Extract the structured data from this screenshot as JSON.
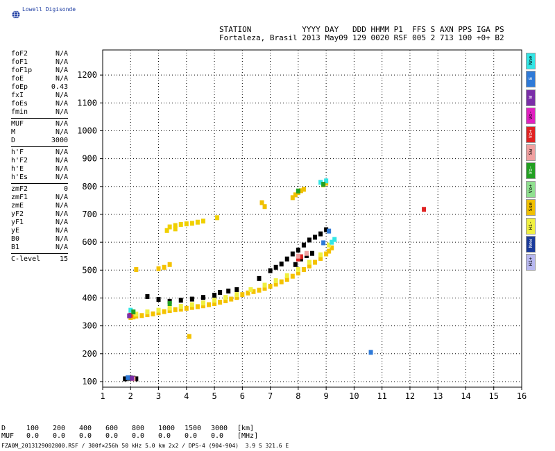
{
  "brand": {
    "name": "Lowell Digisonde",
    "icon": "globe-icon"
  },
  "header": {
    "line1": "STATION           YYYY DAY   DDD HHMM P1  FFS S AXN PPS IGA PS",
    "line2": "Fortaleza, Brasil 2013 May09 129 0020 RSF 005 2 713 100 +0+ B2"
  },
  "params": {
    "group1": [
      {
        "name": "foF2",
        "value": "N/A"
      },
      {
        "name": "foF1",
        "value": "N/A"
      },
      {
        "name": "foF1p",
        "value": "N/A"
      },
      {
        "name": "foE",
        "value": "N/A"
      },
      {
        "name": "foEp",
        "value": "0.43"
      },
      {
        "name": "fxI",
        "value": "N/A"
      },
      {
        "name": "foEs",
        "value": "N/A"
      },
      {
        "name": "fmin",
        "value": "N/A"
      }
    ],
    "group2": [
      {
        "name": "MUF",
        "value": "N/A"
      },
      {
        "name": "M",
        "value": "N/A"
      },
      {
        "name": "D",
        "value": "3000"
      }
    ],
    "group3": [
      {
        "name": "h'F",
        "value": "N/A"
      },
      {
        "name": "h'F2",
        "value": "N/A"
      },
      {
        "name": "h'E",
        "value": "N/A"
      },
      {
        "name": "h'Es",
        "value": "N/A"
      }
    ],
    "group4": [
      {
        "name": "zmF2",
        "value": "0"
      },
      {
        "name": "zmF1",
        "value": "N/A"
      },
      {
        "name": "zmE",
        "value": "N/A"
      },
      {
        "name": "yF2",
        "value": "N/A"
      },
      {
        "name": "yF1",
        "value": "N/A"
      },
      {
        "name": "yE",
        "value": "N/A"
      },
      {
        "name": "B0",
        "value": "N/A"
      },
      {
        "name": "B1",
        "value": "N/A"
      }
    ],
    "group5": [
      {
        "name": "C-level",
        "value": "15"
      }
    ]
  },
  "legend": [
    {
      "label": "Nne",
      "color": "#33e6e6"
    },
    {
      "label": "E",
      "color": "#2f7ad8"
    },
    {
      "label": "W",
      "color": "#7a2ea8"
    },
    {
      "label": "Vo-",
      "color": "#e020c0"
    },
    {
      "label": "Vo+",
      "color": "#e02222"
    },
    {
      "label": "Sw",
      "color": "#f0a0a0"
    },
    {
      "label": "Vo-",
      "color": "#22a022"
    },
    {
      "label": "Vo+",
      "color": "#90e090"
    },
    {
      "label": "Sse",
      "color": "#f0c000"
    },
    {
      "label": "Hi-",
      "color": "#f0f040"
    },
    {
      "label": "New",
      "color": "#1a3a9a"
    },
    {
      "label": "Hi+",
      "color": "#b8b8f0"
    }
  ],
  "chart_data": {
    "type": "scatter",
    "xlim": [
      1,
      16
    ],
    "ylim": [
      80,
      1290
    ],
    "x_ticks": [
      "1",
      "2",
      "3",
      "4",
      "5",
      "6",
      "7",
      "8",
      "9",
      "10",
      "11",
      "12",
      "13",
      "14",
      "15",
      "16"
    ],
    "y_ticks": [
      "100",
      "200",
      "300",
      "400",
      "500",
      "600",
      "700",
      "800",
      "900",
      "1000",
      "1100",
      "1200"
    ],
    "grid": true,
    "series": [
      {
        "role": "o-trace",
        "color": "#f4c200",
        "points": [
          [
            2.0,
            330
          ],
          [
            2.1,
            332
          ],
          [
            2.2,
            335
          ],
          [
            2.4,
            337
          ],
          [
            2.6,
            340
          ],
          [
            2.8,
            343
          ],
          [
            3.0,
            347
          ],
          [
            3.2,
            351
          ],
          [
            3.4,
            355
          ],
          [
            3.6,
            358
          ],
          [
            3.8,
            360
          ],
          [
            4.0,
            363
          ],
          [
            4.2,
            366
          ],
          [
            4.4,
            369
          ],
          [
            4.6,
            372
          ],
          [
            4.8,
            376
          ],
          [
            5.0,
            380
          ],
          [
            5.2,
            385
          ],
          [
            5.4,
            390
          ],
          [
            5.6,
            396
          ],
          [
            5.8,
            402
          ],
          [
            6.0,
            412
          ],
          [
            6.2,
            418
          ],
          [
            6.4,
            423
          ],
          [
            6.6,
            428
          ],
          [
            6.8,
            435
          ],
          [
            7.0,
            442
          ],
          [
            7.2,
            450
          ],
          [
            7.4,
            458
          ],
          [
            7.6,
            467
          ],
          [
            7.8,
            478
          ],
          [
            8.0,
            490
          ],
          [
            8.2,
            502
          ],
          [
            8.4,
            515
          ],
          [
            8.6,
            528
          ],
          [
            8.8,
            542
          ],
          [
            9.0,
            558
          ],
          [
            9.1,
            568
          ],
          [
            9.2,
            580
          ]
        ]
      },
      {
        "role": "o-trace-upper",
        "color": "#f0f040",
        "points": [
          [
            2.2,
            342
          ],
          [
            2.6,
            350
          ],
          [
            3.0,
            356
          ],
          [
            3.4,
            364
          ],
          [
            3.8,
            370
          ],
          [
            4.2,
            376
          ],
          [
            4.6,
            382
          ],
          [
            5.0,
            392
          ],
          [
            5.4,
            402
          ],
          [
            5.8,
            412
          ],
          [
            6.3,
            430
          ],
          [
            6.8,
            446
          ],
          [
            7.2,
            462
          ],
          [
            7.6,
            480
          ],
          [
            8.0,
            502
          ],
          [
            8.4,
            528
          ],
          [
            8.8,
            555
          ],
          [
            9.1,
            590
          ]
        ]
      },
      {
        "role": "x-trace",
        "color": "#000000",
        "points": [
          [
            2.6,
            405
          ],
          [
            3.0,
            395
          ],
          [
            3.4,
            388
          ],
          [
            3.8,
            392
          ],
          [
            4.2,
            396
          ],
          [
            4.6,
            402
          ],
          [
            5.0,
            410
          ],
          [
            5.2,
            420
          ],
          [
            5.5,
            425
          ],
          [
            5.8,
            430
          ],
          [
            6.6,
            470
          ],
          [
            7.0,
            498
          ],
          [
            7.2,
            510
          ],
          [
            7.4,
            522
          ],
          [
            7.6,
            540
          ],
          [
            7.8,
            558
          ],
          [
            8.0,
            572
          ],
          [
            8.2,
            590
          ],
          [
            8.4,
            608
          ],
          [
            8.6,
            618
          ],
          [
            8.8,
            630
          ],
          [
            9.0,
            645
          ],
          [
            7.9,
            520
          ],
          [
            8.1,
            540
          ],
          [
            8.3,
            552
          ],
          [
            8.5,
            560
          ]
        ]
      },
      {
        "role": "second-hop",
        "color": "#f0d000",
        "points": [
          [
            3.4,
            655
          ],
          [
            3.6,
            660
          ],
          [
            3.8,
            664
          ],
          [
            4.0,
            666
          ],
          [
            4.2,
            668
          ],
          [
            4.4,
            672
          ],
          [
            4.6,
            676
          ],
          [
            5.1,
            688
          ],
          [
            3.3,
            642
          ],
          [
            3.6,
            648
          ]
        ]
      },
      {
        "role": "high",
        "color": "#f0c000",
        "points": [
          [
            7.8,
            760
          ],
          [
            7.9,
            770
          ],
          [
            8.0,
            778
          ],
          [
            8.1,
            785
          ],
          [
            8.2,
            790
          ],
          [
            8.9,
            806
          ],
          [
            9.0,
            812
          ],
          [
            6.8,
            728
          ],
          [
            6.7,
            742
          ]
        ]
      },
      {
        "role": "e-layer",
        "color": "#000000",
        "points": [
          [
            1.8,
            110
          ],
          [
            1.9,
            112
          ],
          [
            2.0,
            113
          ],
          [
            2.1,
            112
          ],
          [
            2.2,
            110
          ]
        ]
      },
      {
        "role": "east",
        "color": "#2f7ad8",
        "points": [
          [
            1.9,
            114
          ],
          [
            10.6,
            205
          ],
          [
            8.9,
            598
          ],
          [
            9.1,
            640
          ]
        ]
      },
      {
        "role": "cyan",
        "color": "#33e6e6",
        "points": [
          [
            9.2,
            600
          ],
          [
            9.3,
            610
          ],
          [
            8.8,
            815
          ],
          [
            9.0,
            820
          ],
          [
            2.0,
            356
          ]
        ]
      },
      {
        "role": "red",
        "color": "#e02222",
        "points": [
          [
            12.5,
            718
          ],
          [
            2.0,
            338
          ],
          [
            8.0,
            540
          ],
          [
            8.1,
            548
          ]
        ]
      },
      {
        "role": "pink",
        "color": "#f0a0a0",
        "points": [
          [
            8.0,
            550
          ],
          [
            8.3,
            560
          ],
          [
            2.1,
            110
          ]
        ]
      },
      {
        "role": "green",
        "color": "#22a022",
        "points": [
          [
            8.0,
            784
          ],
          [
            8.9,
            808
          ],
          [
            2.1,
            350
          ],
          [
            3.4,
            380
          ]
        ]
      },
      {
        "role": "violet",
        "color": "#7a2ea8",
        "points": [
          [
            1.95,
            336
          ],
          [
            2.05,
            112
          ]
        ]
      },
      {
        "role": "sparse",
        "color": "#f4c200",
        "points": [
          [
            3.0,
            505
          ],
          [
            3.2,
            510
          ],
          [
            3.4,
            520
          ],
          [
            2.2,
            502
          ],
          [
            4.1,
            262
          ]
        ]
      }
    ]
  },
  "distance_table": {
    "d_label": "D",
    "d_values": [
      "100",
      "200",
      "400",
      "600",
      "800",
      "1000",
      "1500",
      "3000"
    ],
    "d_unit": "[km]",
    "muf_label": "MUF",
    "muf_values": [
      "0.0",
      "0.0",
      "0.0",
      "0.0",
      "0.0",
      "0.0",
      "0.0",
      "0.0"
    ],
    "muf_unit": "[MHz]"
  },
  "footer": "FZA0M_2013129002000.RSF / 300f×256h 50 kHz 5.0 km 2x2 / DPS-4 (904-904)  3.9 S 321.6 E"
}
